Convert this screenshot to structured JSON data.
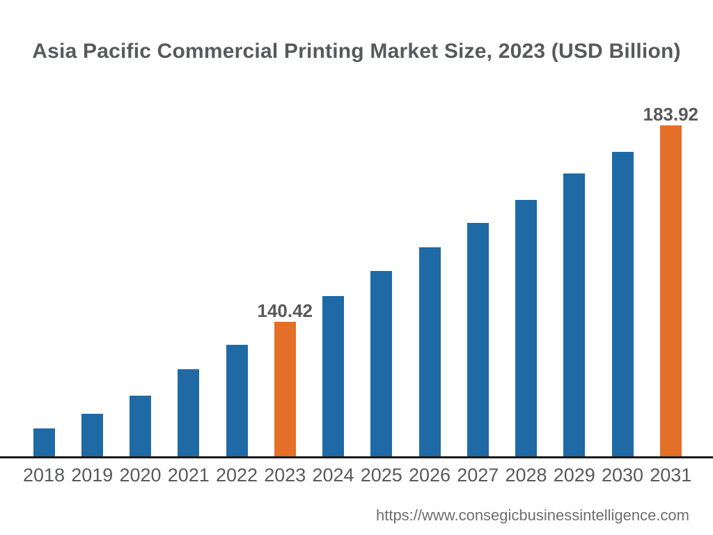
{
  "title": "Asia Pacific Commercial Printing Market Size, 2023 (USD Billion)",
  "footer": {
    "url": "https://www.consegicbusinessintelligence.com"
  },
  "colors": {
    "bar": "#1F6AA5",
    "highlight": "#E36F28",
    "text": "#58595B",
    "axis": "#1A1A1A",
    "background": "#FFFFFF"
  },
  "chart_data": {
    "type": "bar",
    "title": "Asia Pacific Commercial Printing Market Size, 2023 (USD Billion)",
    "xlabel": "",
    "ylabel": "",
    "categories": [
      "2018",
      "2019",
      "2020",
      "2021",
      "2022",
      "2023",
      "2024",
      "2025",
      "2026",
      "2027",
      "2028",
      "2029",
      "2030",
      "2031"
    ],
    "values": [
      116.8,
      120.1,
      124.1,
      129.9,
      135.3,
      140.42,
      146.1,
      151.7,
      156.9,
      162.3,
      167.4,
      173.3,
      178.1,
      183.92
    ],
    "values_note": "Only 2023 and 2031 carry visible data labels; other values estimated from bar heights",
    "data_labels": {
      "2023": "140.42",
      "2031": "183.92"
    },
    "highlighted_categories": [
      "2023",
      "2031"
    ],
    "bar_color": "#1F6AA5",
    "highlight_color": "#E36F28",
    "value_axis_visible": false,
    "approx_value_range": [
      110,
      190
    ],
    "grid": false,
    "legend": false
  }
}
